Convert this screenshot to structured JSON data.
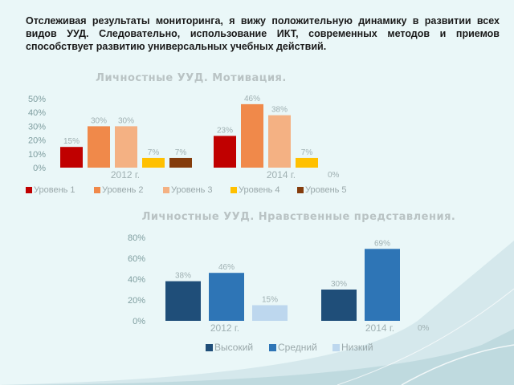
{
  "intro_text": "Отслеживая результаты мониторинга, я вижу положительную динамику в развитии всех видов УУД. Следовательно, использование ИКТ, современных методов и приемов способствует развитию универсальных учебных действий.",
  "chart_data": [
    {
      "type": "bar",
      "title": "Личностные УУД. Мотивация.",
      "categories": [
        "2012 г.",
        "2014 г."
      ],
      "yticks": [
        "0%",
        "10%",
        "20%",
        "30%",
        "40%",
        "50%"
      ],
      "ylim": [
        0,
        50
      ],
      "series": [
        {
          "name": "Уровень 1",
          "color": "#c00000",
          "values": [
            15,
            23
          ],
          "labels": [
            "15%",
            "23%"
          ]
        },
        {
          "name": "Уровень 2",
          "color": "#f0894a",
          "values": [
            30,
            46
          ],
          "labels": [
            "30%",
            "46%"
          ]
        },
        {
          "name": "Уровень 3",
          "color": "#f4b183",
          "values": [
            30,
            38
          ],
          "labels": [
            "30%",
            "38%"
          ]
        },
        {
          "name": "Уровень 4",
          "color": "#ffc000",
          "values": [
            7,
            7
          ],
          "labels": [
            "7%",
            "7%"
          ]
        },
        {
          "name": "Уровень 5",
          "color": "#843c0c",
          "values": [
            7,
            0
          ],
          "labels": [
            "7%",
            "0%"
          ]
        }
      ],
      "legend": "bottom",
      "grid": false
    },
    {
      "type": "bar",
      "title": "Личностные УУД. Нравственные представления.",
      "categories": [
        "2012 г.",
        "2014 г."
      ],
      "yticks": [
        "0%",
        "20%",
        "40%",
        "60%",
        "80%"
      ],
      "ylim": [
        0,
        80
      ],
      "series": [
        {
          "name": "Высокий",
          "color": "#1f4e79",
          "values": [
            38,
            30
          ],
          "labels": [
            "38%",
            "30%"
          ]
        },
        {
          "name": "Средний",
          "color": "#2e75b6",
          "values": [
            46,
            69
          ],
          "labels": [
            "46%",
            "69%"
          ]
        },
        {
          "name": "Низкий",
          "color": "#bdd7ee",
          "values": [
            15,
            0
          ],
          "labels": [
            "15%",
            "0%"
          ]
        }
      ],
      "legend": "bottom",
      "grid": false
    }
  ]
}
